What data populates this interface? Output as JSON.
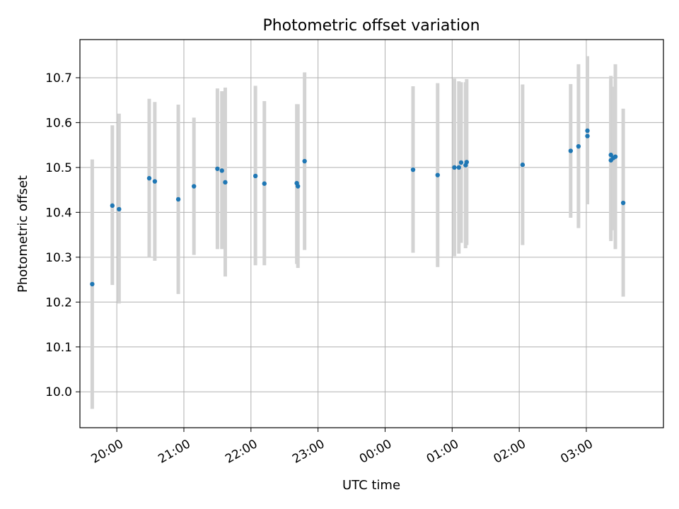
{
  "chart_data": {
    "type": "scatter",
    "title": "Photometric offset variation",
    "xlabel": "UTC time",
    "ylabel": "Photometric offset",
    "x_axis": {
      "type": "time",
      "range": [
        "19:27",
        "04:09"
      ],
      "ticks": [
        "20:00",
        "21:00",
        "22:00",
        "23:00",
        "00:00",
        "01:00",
        "02:00",
        "03:00"
      ]
    },
    "y_axis": {
      "range": [
        9.92,
        10.785
      ],
      "ticks": [
        "10.0",
        "10.1",
        "10.2",
        "10.3",
        "10.4",
        "10.5",
        "10.6",
        "10.7"
      ],
      "tick_values": [
        10.0,
        10.1,
        10.2,
        10.3,
        10.4,
        10.5,
        10.6,
        10.7
      ]
    },
    "grid": true,
    "colors": {
      "point": "#1f77b4",
      "errorbar": "#d3d3d3",
      "grid": "#b0b0b0"
    },
    "points": [
      {
        "t": "19:38",
        "y": 10.24,
        "lo": 9.962,
        "hi": 10.518
      },
      {
        "t": "19:56",
        "y": 10.415,
        "lo": 10.238,
        "hi": 10.594
      },
      {
        "t": "20:02",
        "y": 10.407,
        "lo": 10.197,
        "hi": 10.62
      },
      {
        "t": "20:29",
        "y": 10.476,
        "lo": 10.3,
        "hi": 10.653
      },
      {
        "t": "20:34",
        "y": 10.469,
        "lo": 10.292,
        "hi": 10.646
      },
      {
        "t": "20:55",
        "y": 10.429,
        "lo": 10.218,
        "hi": 10.64
      },
      {
        "t": "21:09",
        "y": 10.458,
        "lo": 10.305,
        "hi": 10.611
      },
      {
        "t": "21:30",
        "y": 10.497,
        "lo": 10.318,
        "hi": 10.676
      },
      {
        "t": "21:34",
        "y": 10.493,
        "lo": 10.318,
        "hi": 10.67
      },
      {
        "t": "21:37",
        "y": 10.467,
        "lo": 10.257,
        "hi": 10.678
      },
      {
        "t": "22:04",
        "y": 10.481,
        "lo": 10.282,
        "hi": 10.682
      },
      {
        "t": "22:12",
        "y": 10.464,
        "lo": 10.282,
        "hi": 10.648
      },
      {
        "t": "22:41",
        "y": 10.465,
        "lo": 10.285,
        "hi": 10.641
      },
      {
        "t": "22:42",
        "y": 10.458,
        "lo": 10.276,
        "hi": 10.641
      },
      {
        "t": "22:48",
        "y": 10.514,
        "lo": 10.316,
        "hi": 10.712
      },
      {
        "t": "00:25",
        "y": 10.495,
        "lo": 10.31,
        "hi": 10.681
      },
      {
        "t": "00:47",
        "y": 10.483,
        "lo": 10.278,
        "hi": 10.688
      },
      {
        "t": "01:02",
        "y": 10.5,
        "lo": 10.302,
        "hi": 10.698
      },
      {
        "t": "01:06",
        "y": 10.5,
        "lo": 10.308,
        "hi": 10.692
      },
      {
        "t": "01:08",
        "y": 10.511,
        "lo": 10.332,
        "hi": 10.69
      },
      {
        "t": "01:12",
        "y": 10.505,
        "lo": 10.32,
        "hi": 10.69
      },
      {
        "t": "01:13",
        "y": 10.512,
        "lo": 10.327,
        "hi": 10.697
      },
      {
        "t": "02:03",
        "y": 10.506,
        "lo": 10.327,
        "hi": 10.685
      },
      {
        "t": "02:46",
        "y": 10.537,
        "lo": 10.388,
        "hi": 10.686
      },
      {
        "t": "02:53",
        "y": 10.547,
        "lo": 10.365,
        "hi": 10.73
      },
      {
        "t": "03:01",
        "y": 10.582,
        "lo": 10.418,
        "hi": 10.748
      },
      {
        "t": "03:01",
        "y": 10.57,
        "lo": 10.418,
        "hi": 10.724
      },
      {
        "t": "03:22",
        "y": 10.528,
        "lo": 10.336,
        "hi": 10.704
      },
      {
        "t": "03:22",
        "y": 10.516,
        "lo": 10.34,
        "hi": 10.695
      },
      {
        "t": "03:24",
        "y": 10.521,
        "lo": 10.36,
        "hi": 10.68
      },
      {
        "t": "03:26",
        "y": 10.524,
        "lo": 10.318,
        "hi": 10.73
      },
      {
        "t": "03:33",
        "y": 10.421,
        "lo": 10.212,
        "hi": 10.631
      }
    ]
  }
}
